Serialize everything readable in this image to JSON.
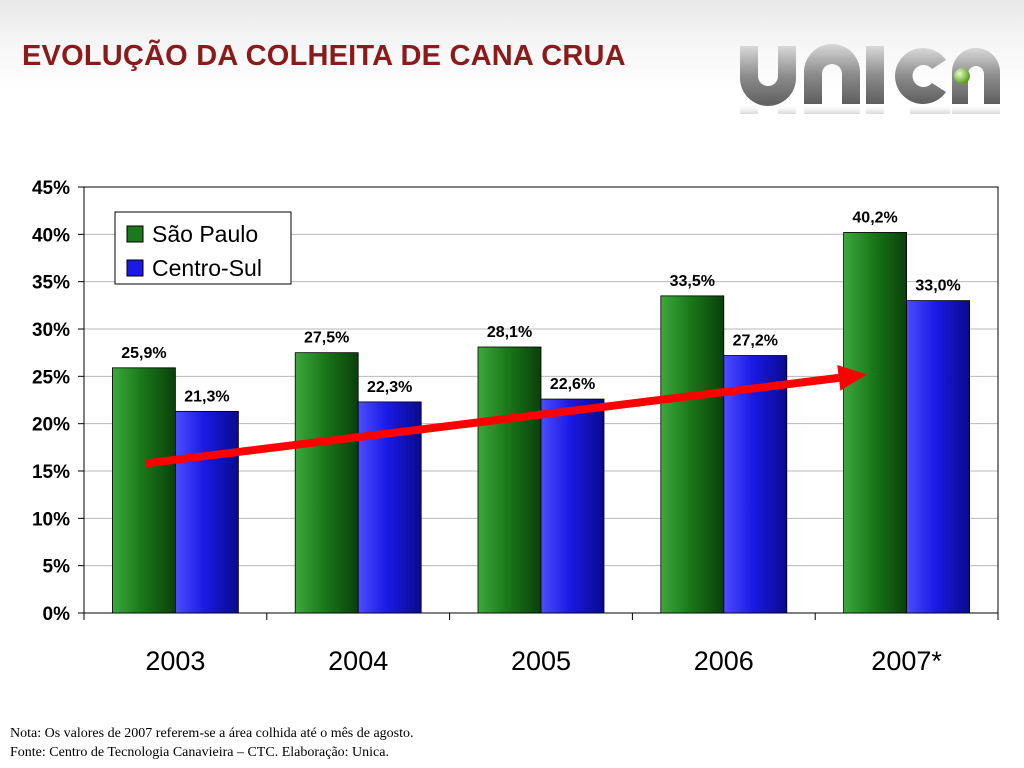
{
  "slide": {
    "title": "EVOLUÇÃO DA COLHEITA DE CANA CRUA"
  },
  "logo": {
    "text": "UNICA",
    "colors": {
      "letters": "#7a7a7a",
      "dot": "#8bc34a"
    }
  },
  "chart_data": {
    "type": "bar",
    "categories": [
      "2003",
      "2004",
      "2005",
      "2006",
      "2007*"
    ],
    "series": [
      {
        "name": "São Paulo",
        "values": [
          25.9,
          27.5,
          28.1,
          33.5,
          40.2
        ],
        "labels": [
          "25,9%",
          "27,5%",
          "28,1%",
          "33,5%",
          "40,2%"
        ],
        "color": "#1a7a1a"
      },
      {
        "name": "Centro-Sul",
        "values": [
          21.3,
          22.3,
          22.6,
          27.2,
          33.0
        ],
        "labels": [
          "21,3%",
          "22,3%",
          "22,6%",
          "27,2%",
          "33,0%"
        ],
        "color": "#1a1ae6"
      }
    ],
    "y_ticks": [
      "0%",
      "5%",
      "10%",
      "15%",
      "20%",
      "25%",
      "30%",
      "35%",
      "40%",
      "45%"
    ],
    "ylim": [
      0,
      45
    ],
    "grid": true,
    "legend": "top-left",
    "trend_arrow": {
      "color": "#ff0000",
      "direction": "up-right"
    }
  },
  "footnotes": {
    "note": "Nota: Os valores de 2007 referem-se a área colhida até o mês de agosto.",
    "source": "Fonte: Centro de Tecnologia Canavieira – CTC. Elaboração: Unica."
  }
}
